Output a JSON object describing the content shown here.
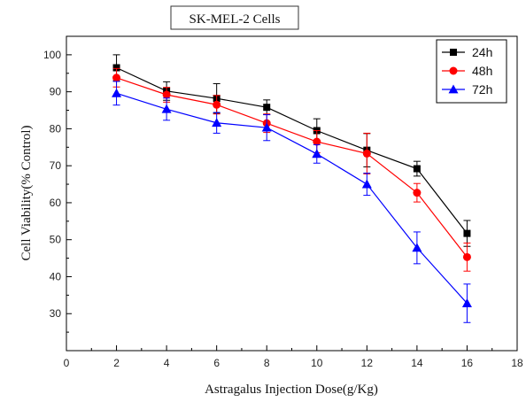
{
  "chart_data": {
    "type": "line",
    "title": "SK-MEL-2 Cells",
    "xlabel": "Astragalus Injection Dose(g/Kg)",
    "ylabel": "Cell Viability(% Control)",
    "xlim": [
      0,
      18
    ],
    "ylim": [
      20,
      105
    ],
    "xticks": [
      0,
      2,
      4,
      6,
      8,
      10,
      12,
      14,
      16,
      18
    ],
    "yticks": [
      30,
      40,
      50,
      60,
      70,
      80,
      90,
      100
    ],
    "grid": false,
    "legend_position": "top-right",
    "x": [
      2,
      4,
      6,
      8,
      10,
      12,
      14,
      16
    ],
    "series": [
      {
        "name": "24h",
        "color": "#000000",
        "marker": "square",
        "values": [
          96.5,
          90.2,
          88.2,
          85.8,
          79.5,
          74.2,
          69.2,
          51.7
        ],
        "errors": [
          3.5,
          2.5,
          4.0,
          2.0,
          3.2,
          4.5,
          2.0,
          3.5
        ]
      },
      {
        "name": "48h",
        "color": "#ff0000",
        "marker": "circle",
        "values": [
          93.8,
          89.2,
          86.5,
          81.5,
          76.5,
          73.3,
          62.7,
          45.3
        ],
        "errors": [
          2.5,
          2.0,
          2.5,
          2.5,
          3.0,
          5.5,
          2.5,
          3.8
        ]
      },
      {
        "name": "72h",
        "color": "#0000ff",
        "marker": "triangle",
        "values": [
          89.6,
          85.3,
          81.6,
          80.3,
          73.2,
          65.0,
          47.8,
          32.8
        ],
        "errors": [
          3.2,
          3.0,
          2.8,
          3.5,
          2.5,
          3.0,
          4.3,
          5.2
        ]
      }
    ]
  }
}
